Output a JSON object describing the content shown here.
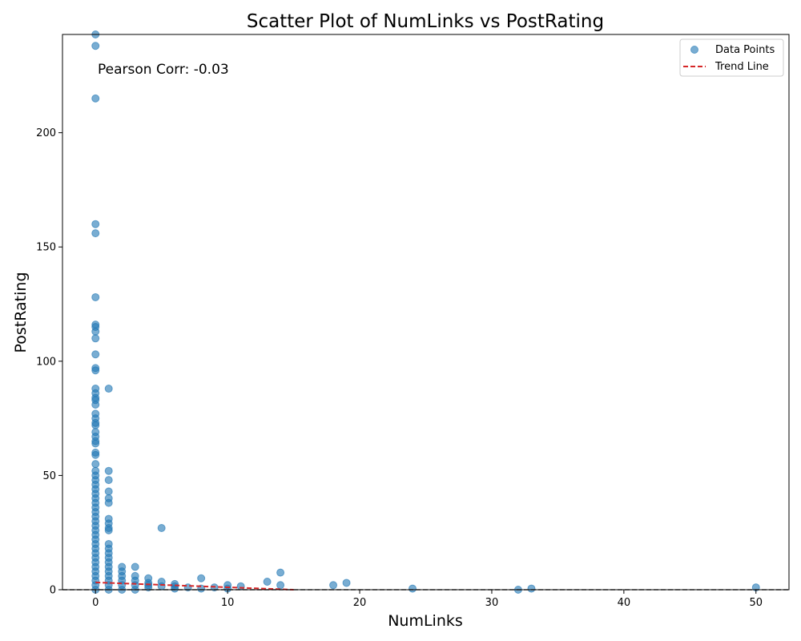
{
  "chart_data": {
    "type": "scatter",
    "title": "Scatter Plot of NumLinks vs PostRating",
    "xlabel": "NumLinks",
    "ylabel": "PostRating",
    "xlim": [
      -2.5,
      52.5
    ],
    "ylim": [
      0,
      243
    ],
    "xticks": [
      0,
      10,
      20,
      30,
      40,
      50
    ],
    "yticks": [
      0,
      50,
      100,
      150,
      200
    ],
    "annotation": "Pearson Corr: -0.03",
    "legend": {
      "position": "top-right",
      "entries": [
        "Data Points",
        "Trend Line"
      ]
    },
    "colors": {
      "points": "#1f77b4",
      "trend": "#d62728",
      "hline": "#555555"
    },
    "grid": false,
    "series": [
      {
        "name": "Data Points",
        "points": [
          [
            0,
            243
          ],
          [
            0,
            238
          ],
          [
            0,
            215
          ],
          [
            0,
            160
          ],
          [
            0,
            156
          ],
          [
            0,
            128
          ],
          [
            0,
            116
          ],
          [
            0,
            115
          ],
          [
            0,
            113
          ],
          [
            0,
            110
          ],
          [
            0,
            103
          ],
          [
            0,
            97
          ],
          [
            0,
            96
          ],
          [
            0,
            88
          ],
          [
            0,
            86
          ],
          [
            0,
            84
          ],
          [
            0,
            83
          ],
          [
            0,
            81
          ],
          [
            0,
            77
          ],
          [
            0,
            75
          ],
          [
            0,
            73
          ],
          [
            0,
            72
          ],
          [
            0,
            69
          ],
          [
            0,
            67
          ],
          [
            0,
            65
          ],
          [
            0,
            64
          ],
          [
            0,
            60
          ],
          [
            0,
            59
          ],
          [
            0,
            55
          ],
          [
            0,
            52
          ],
          [
            0,
            50
          ],
          [
            0,
            48
          ],
          [
            0,
            46
          ],
          [
            0,
            44
          ],
          [
            0,
            42
          ],
          [
            0,
            40
          ],
          [
            0,
            38
          ],
          [
            0,
            36
          ],
          [
            0,
            34
          ],
          [
            0,
            32
          ],
          [
            0,
            30
          ],
          [
            0,
            28
          ],
          [
            0,
            26
          ],
          [
            0,
            24
          ],
          [
            0,
            22
          ],
          [
            0,
            20
          ],
          [
            0,
            18
          ],
          [
            0,
            16
          ],
          [
            0,
            14
          ],
          [
            0,
            12
          ],
          [
            0,
            10
          ],
          [
            0,
            8
          ],
          [
            0,
            6
          ],
          [
            0,
            4
          ],
          [
            0,
            2
          ],
          [
            0,
            0
          ],
          [
            1,
            88
          ],
          [
            1,
            52
          ],
          [
            1,
            48
          ],
          [
            1,
            43
          ],
          [
            1,
            40
          ],
          [
            1,
            38
          ],
          [
            1,
            31
          ],
          [
            1,
            29
          ],
          [
            1,
            27
          ],
          [
            1,
            26
          ],
          [
            1,
            20
          ],
          [
            1,
            18
          ],
          [
            1,
            16
          ],
          [
            1,
            14
          ],
          [
            1,
            12
          ],
          [
            1,
            10
          ],
          [
            1,
            8
          ],
          [
            1,
            6
          ],
          [
            1,
            4
          ],
          [
            1,
            2
          ],
          [
            1,
            0
          ],
          [
            2,
            10
          ],
          [
            2,
            8
          ],
          [
            2,
            6
          ],
          [
            2,
            4
          ],
          [
            2,
            2
          ],
          [
            2,
            0
          ],
          [
            3,
            10
          ],
          [
            3,
            6
          ],
          [
            3,
            4
          ],
          [
            3,
            2
          ],
          [
            3,
            0
          ],
          [
            4,
            5
          ],
          [
            4,
            3
          ],
          [
            4,
            2
          ],
          [
            4,
            1
          ],
          [
            5,
            27
          ],
          [
            5,
            3.5
          ],
          [
            5,
            1.5
          ],
          [
            6,
            2.5
          ],
          [
            6,
            1.5
          ],
          [
            6,
            0.5
          ],
          [
            7,
            1
          ],
          [
            8,
            5
          ],
          [
            8,
            0.5
          ],
          [
            9,
            1
          ],
          [
            10,
            2
          ],
          [
            10,
            0.5
          ],
          [
            11,
            1.5
          ],
          [
            13,
            3.5
          ],
          [
            14,
            7.5
          ],
          [
            14,
            2
          ],
          [
            18,
            2
          ],
          [
            19,
            3
          ],
          [
            24,
            0.5
          ],
          [
            32,
            0
          ],
          [
            33,
            0.5
          ],
          [
            50,
            1
          ]
        ]
      },
      {
        "name": "Trend Line",
        "line": [
          [
            0,
            3.2
          ],
          [
            15,
            0
          ]
        ]
      }
    ],
    "reference_line": {
      "y": 0
    }
  }
}
